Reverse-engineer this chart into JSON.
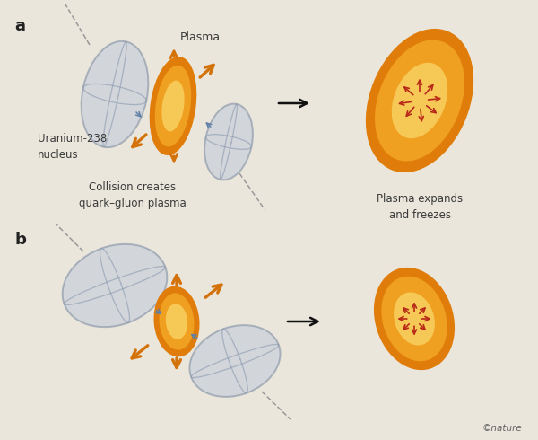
{
  "bg_color": "#eae6db",
  "title_color": "#222222",
  "label_color": "#3a3a3a",
  "orange_outer": "#e07c0a",
  "orange_mid": "#f0a020",
  "orange_inner": "#f8d060",
  "gray_face": "#c0c8d8",
  "gray_edge": "#7888a0",
  "gray_line": "#8898b0",
  "arrow_orange": "#d4720a",
  "arrow_red": "#b82818",
  "arrow_black": "#111111",
  "arrow_blue": "#6080a8",
  "note_color": "#666666",
  "panel_a_label": "a",
  "panel_b_label": "b",
  "label_uranium": "Uranium-238\nnucleus",
  "label_collision": "Collision creates\nquark–gluon plasma",
  "label_plasma_text": "Plasma",
  "label_expands": "Plasma expands\nand freezes",
  "label_nature": "©nature"
}
